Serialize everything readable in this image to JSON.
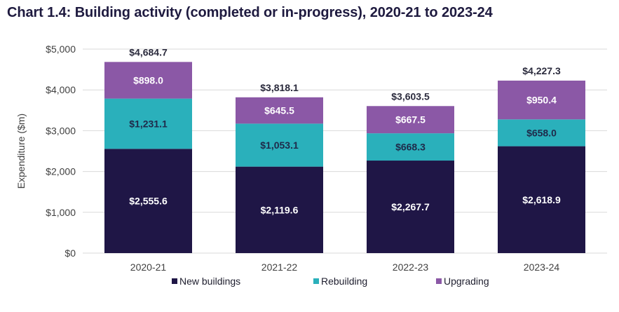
{
  "title": "Chart 1.4: Building activity (completed or in-progress), 2020-21 to 2023-24",
  "chart_data": {
    "type": "bar",
    "stacked": true,
    "title": "Chart 1.4: Building activity (completed or in-progress), 2020-21 to 2023-24",
    "xlabel": "",
    "ylabel": "Expenditure ($m)",
    "ylim": [
      0,
      5000
    ],
    "yticks": [
      0,
      1000,
      2000,
      3000,
      4000,
      5000
    ],
    "ytick_labels": [
      "$0",
      "$1,000",
      "$2,000",
      "$3,000",
      "$4,000",
      "$5,000"
    ],
    "grid": true,
    "legend_position": "bottom",
    "categories": [
      "2020-21",
      "2021-22",
      "2022-23",
      "2023-24"
    ],
    "series": [
      {
        "name": "New buildings",
        "color": "#1f1646",
        "label_color": "#ffffff",
        "values": [
          2555.6,
          2119.6,
          2267.7,
          2618.9
        ],
        "labels": [
          "$2,555.6",
          "$2,119.6",
          "$2,267.7",
          "$2,618.9"
        ]
      },
      {
        "name": "Rebuilding",
        "color": "#2ab0bb",
        "label_color": "#1f2a4a",
        "values": [
          1231.1,
          1053.1,
          668.3,
          658.0
        ],
        "labels": [
          "$1,231.1",
          "$1,053.1",
          "$668.3",
          "$658.0"
        ]
      },
      {
        "name": "Upgrading",
        "color": "#8b58a6",
        "label_color": "#ffffff",
        "values": [
          898.0,
          645.5,
          667.5,
          950.4
        ],
        "labels": [
          "$898.0",
          "$645.5",
          "$667.5",
          "$950.4"
        ]
      }
    ],
    "totals": [
      4684.7,
      3818.1,
      3603.5,
      4227.3
    ],
    "total_labels": [
      "$4,684.7",
      "$3,818.1",
      "$3,603.5",
      "$4,227.3"
    ]
  }
}
